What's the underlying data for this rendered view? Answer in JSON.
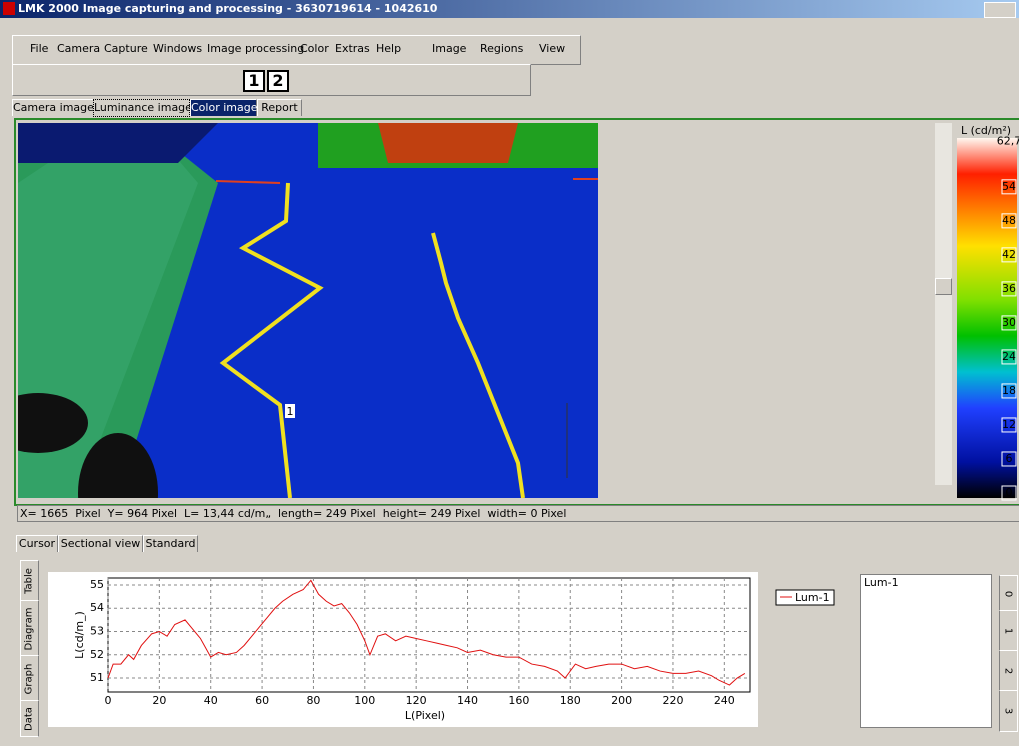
{
  "window": {
    "title": "LMK 2000 Image capturing and processing - 3630719614 - 1042610"
  },
  "menu": [
    "File",
    "Camera",
    "Capture",
    "Windows",
    "Image processing",
    "Color",
    "Extras",
    "Help",
    "Image",
    "Regions",
    "View"
  ],
  "toolbar": [
    "1",
    "2"
  ],
  "image_tabs": [
    "Camera image",
    "Luminance image",
    "Color image",
    "Report"
  ],
  "marker": "1",
  "colorbar": {
    "title": "L (cd/m²)",
    "ticks": [
      {
        "value": 62.7,
        "label": "62,7"
      },
      54,
      48,
      42,
      36,
      30,
      24,
      18,
      12,
      6,
      0
    ]
  },
  "status": "X= 1665  Pixel  Y= 964 Pixel  L= 13,44 cd/m„  length= 249 Pixel  height= 249 Pixel  width= 0 Pixel",
  "bottom_tabs": [
    "Cursor",
    "Sectional view",
    "Standard"
  ],
  "side_tabs": [
    "Table",
    "Diagram",
    "Graph",
    "Data"
  ],
  "right_tabs": [
    "0",
    "1",
    "2",
    "3"
  ],
  "list": [
    "Lum-1"
  ],
  "chart_data": {
    "type": "line",
    "xlabel": "L(Pixel)",
    "ylabel": "L(cd/m_)",
    "x": [
      0,
      2,
      5,
      8,
      10,
      13,
      17,
      20,
      23,
      26,
      30,
      33,
      36,
      38,
      40,
      43,
      46,
      50,
      53,
      56,
      59,
      62,
      65,
      68,
      72,
      76,
      79,
      82,
      85,
      88,
      91,
      94,
      97,
      100,
      102,
      105,
      108,
      112,
      116,
      120,
      124,
      128,
      132,
      136,
      140,
      145,
      150,
      155,
      160,
      165,
      170,
      175,
      178,
      182,
      186,
      190,
      195,
      200,
      205,
      210,
      215,
      220,
      225,
      230,
      235,
      238,
      242,
      245,
      248
    ],
    "series": [
      {
        "name": "Lum-1",
        "color": "#e01010",
        "values": [
          51.0,
          51.6,
          51.6,
          52.0,
          51.8,
          52.4,
          52.9,
          53.0,
          52.8,
          53.3,
          53.5,
          53.1,
          52.7,
          52.3,
          51.9,
          52.1,
          52.0,
          52.1,
          52.4,
          52.8,
          53.2,
          53.6,
          54.0,
          54.3,
          54.6,
          54.8,
          55.2,
          54.6,
          54.3,
          54.1,
          54.2,
          53.8,
          53.3,
          52.6,
          52.0,
          52.8,
          52.9,
          52.6,
          52.8,
          52.7,
          52.6,
          52.5,
          52.4,
          52.3,
          52.1,
          52.2,
          52.0,
          51.9,
          51.9,
          51.6,
          51.5,
          51.3,
          51.0,
          51.6,
          51.4,
          51.5,
          51.6,
          51.6,
          51.4,
          51.5,
          51.3,
          51.2,
          51.2,
          51.3,
          51.1,
          50.9,
          50.7,
          51.0,
          51.2
        ]
      }
    ],
    "xlim": [
      0,
      250
    ],
    "ylim": [
      50.4,
      55.3
    ],
    "xticks": [
      0,
      20,
      40,
      60,
      80,
      100,
      120,
      140,
      160,
      180,
      200,
      220,
      240
    ],
    "yticks": [
      51,
      52,
      53,
      54,
      55
    ],
    "grid": true
  }
}
